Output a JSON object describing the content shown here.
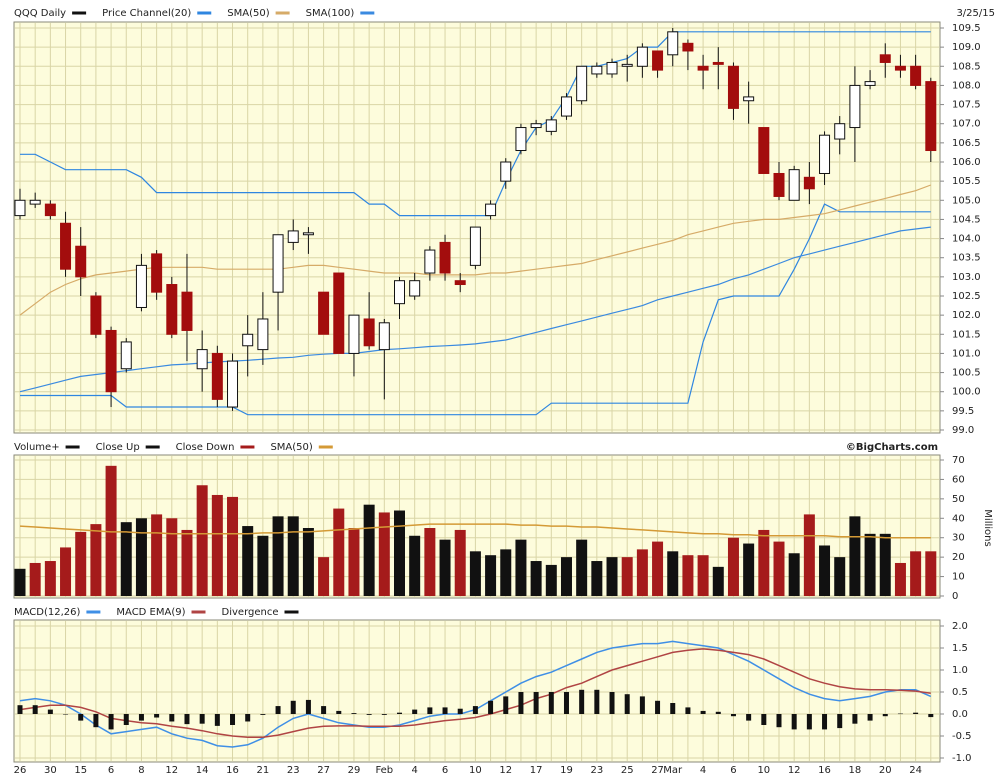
{
  "chart_data": [
    {
      "type": "candlestick",
      "title": "QQQ Daily",
      "date": "3/25/15",
      "color_up": "#ffffff",
      "color_down": "#a30d0d",
      "color_outline": "#111111",
      "open": [
        104.6,
        104.9,
        104.9,
        104.4,
        103.8,
        102.5,
        101.6,
        100.6,
        102.2,
        103.6,
        102.8,
        102.6,
        100.6,
        101.0,
        99.6,
        101.2,
        101.1,
        102.6,
        103.9,
        104.1,
        102.6,
        103.1,
        101.0,
        101.9,
        101.1,
        102.3,
        102.5,
        103.1,
        103.9,
        102.9,
        103.3,
        104.6,
        105.5,
        106.3,
        106.9,
        106.8,
        107.2,
        107.6,
        108.3,
        108.3,
        108.5,
        108.5,
        108.9,
        108.8,
        109.1,
        108.5,
        108.6,
        108.5,
        107.6,
        106.9,
        105.7,
        105.0,
        105.6,
        105.7,
        106.6,
        106.9,
        108.0,
        108.8,
        108.5,
        108.5,
        108.1
      ],
      "high": [
        105.3,
        105.2,
        105.0,
        104.7,
        104.3,
        102.6,
        101.7,
        101.4,
        103.6,
        103.7,
        103.0,
        103.6,
        101.6,
        101.2,
        101.0,
        102.0,
        102.6,
        104.1,
        104.5,
        104.3,
        102.6,
        103.1,
        102.0,
        102.6,
        101.9,
        103.0,
        103.1,
        103.8,
        104.1,
        103.1,
        104.3,
        105.0,
        106.1,
        107.0,
        107.1,
        107.2,
        107.8,
        108.5,
        108.6,
        108.7,
        108.8,
        109.1,
        108.9,
        109.5,
        109.2,
        108.8,
        109.0,
        108.6,
        108.1,
        106.9,
        106.0,
        105.9,
        106.0,
        106.8,
        107.2,
        108.5,
        108.4,
        109.1,
        108.8,
        108.8,
        108.2
      ],
      "low": [
        104.5,
        104.8,
        104.5,
        103.0,
        102.5,
        101.4,
        99.6,
        100.5,
        102.1,
        102.4,
        101.4,
        100.8,
        100.0,
        99.6,
        99.5,
        100.4,
        100.7,
        101.6,
        103.7,
        103.6,
        101.5,
        101.0,
        100.4,
        101.1,
        99.8,
        101.9,
        102.4,
        102.9,
        102.9,
        102.6,
        103.2,
        104.5,
        105.3,
        106.2,
        106.7,
        106.7,
        107.1,
        107.5,
        108.2,
        108.2,
        108.1,
        108.2,
        108.2,
        108.5,
        108.4,
        107.9,
        107.9,
        107.1,
        107.0,
        105.7,
        105.0,
        105.0,
        104.9,
        105.4,
        106.2,
        106.0,
        107.9,
        108.2,
        108.2,
        107.9,
        106.0
      ],
      "close": [
        105.0,
        105.0,
        104.6,
        103.2,
        103.0,
        101.5,
        100.0,
        101.3,
        103.3,
        102.6,
        101.5,
        101.6,
        101.1,
        99.8,
        100.8,
        101.5,
        101.9,
        104.1,
        104.2,
        104.15,
        101.5,
        101.0,
        102.0,
        101.2,
        101.8,
        102.9,
        102.9,
        103.7,
        103.1,
        102.8,
        104.3,
        104.9,
        106.0,
        106.9,
        107.0,
        107.1,
        107.7,
        108.5,
        108.5,
        108.6,
        108.55,
        109.0,
        108.4,
        109.4,
        108.9,
        108.4,
        108.55,
        107.4,
        107.7,
        105.7,
        105.1,
        105.8,
        105.3,
        106.7,
        107.0,
        108.0,
        108.1,
        108.6,
        108.4,
        108.0,
        106.3
      ],
      "channel": {
        "name": "Price Channel(20)",
        "color": "#2f86e0",
        "upper": [
          106.2,
          106.2,
          106.0,
          105.8,
          105.8,
          105.8,
          105.8,
          105.8,
          105.6,
          105.2,
          105.2,
          105.2,
          105.2,
          105.2,
          105.2,
          105.2,
          105.2,
          105.2,
          105.2,
          105.2,
          105.2,
          105.2,
          105.2,
          104.9,
          104.9,
          104.6,
          104.6,
          104.6,
          104.6,
          104.6,
          104.6,
          104.6,
          105.5,
          106.3,
          106.9,
          107.1,
          107.7,
          108.5,
          108.5,
          108.6,
          108.7,
          109.0,
          109.0,
          109.4,
          109.4,
          109.4,
          109.4,
          109.4,
          109.4,
          109.4,
          109.4,
          109.4,
          109.4,
          109.4,
          109.4,
          109.4,
          109.4,
          109.4,
          109.4,
          109.4,
          109.4
        ],
        "lower": [
          99.9,
          99.9,
          99.9,
          99.9,
          99.9,
          99.9,
          99.9,
          99.6,
          99.6,
          99.6,
          99.6,
          99.6,
          99.6,
          99.6,
          99.6,
          99.4,
          99.4,
          99.4,
          99.4,
          99.4,
          99.4,
          99.4,
          99.4,
          99.4,
          99.4,
          99.4,
          99.4,
          99.4,
          99.4,
          99.4,
          99.4,
          99.4,
          99.4,
          99.4,
          99.4,
          99.7,
          99.7,
          99.7,
          99.7,
          99.7,
          99.7,
          99.7,
          99.7,
          99.7,
          99.7,
          101.3,
          102.4,
          102.5,
          102.5,
          102.5,
          102.5,
          103.2,
          104.0,
          104.9,
          104.7,
          104.7,
          104.7,
          104.7,
          104.7,
          104.7,
          104.7
        ]
      },
      "series": [
        {
          "name": "SMA(50)",
          "color": "#d6ab68",
          "values": [
            102.0,
            102.3,
            102.6,
            102.8,
            102.95,
            103.05,
            103.1,
            103.15,
            103.2,
            103.25,
            103.25,
            103.25,
            103.25,
            103.2,
            103.2,
            103.2,
            103.2,
            103.2,
            103.25,
            103.3,
            103.3,
            103.25,
            103.2,
            103.15,
            103.1,
            103.1,
            103.1,
            103.05,
            103.05,
            103.05,
            103.05,
            103.1,
            103.1,
            103.15,
            103.2,
            103.25,
            103.3,
            103.35,
            103.45,
            103.55,
            103.65,
            103.75,
            103.85,
            103.95,
            104.1,
            104.2,
            104.3,
            104.4,
            104.45,
            104.5,
            104.5,
            104.55,
            104.6,
            104.65,
            104.75,
            104.85,
            104.95,
            105.05,
            105.15,
            105.25,
            105.4
          ]
        },
        {
          "name": "SMA(100)",
          "color": "#3a8ae0",
          "values": [
            100.0,
            100.1,
            100.2,
            100.3,
            100.4,
            100.45,
            100.5,
            100.55,
            100.6,
            100.65,
            100.7,
            100.72,
            100.75,
            100.78,
            100.8,
            100.82,
            100.85,
            100.88,
            100.9,
            100.95,
            100.98,
            101.0,
            101.0,
            101.05,
            101.1,
            101.12,
            101.15,
            101.18,
            101.2,
            101.22,
            101.25,
            101.3,
            101.35,
            101.45,
            101.55,
            101.65,
            101.75,
            101.85,
            101.95,
            102.05,
            102.15,
            102.25,
            102.4,
            102.5,
            102.6,
            102.7,
            102.8,
            102.95,
            103.05,
            103.2,
            103.35,
            103.5,
            103.6,
            103.7,
            103.8,
            103.9,
            104.0,
            104.1,
            104.2,
            104.25,
            104.3
          ]
        }
      ],
      "ylim": [
        99.0,
        109.5
      ],
      "yticks": [
        {
          "value": 99,
          "label": "99.0"
        },
        99.5,
        {
          "value": 100,
          "label": "100.0"
        },
        100.5,
        {
          "value": 101,
          "label": "101.0"
        },
        101.5,
        {
          "value": 102,
          "label": "102.0"
        },
        102.5,
        {
          "value": 103,
          "label": "103.0"
        },
        103.5,
        {
          "value": 104,
          "label": "104.0"
        },
        104.5,
        {
          "value": 105,
          "label": "105.0"
        },
        105.5,
        {
          "value": 106,
          "label": "106.0"
        },
        106.5,
        {
          "value": 107,
          "label": "107.0"
        },
        107.5,
        {
          "value": 108,
          "label": "108.0"
        },
        108.5,
        {
          "value": 109,
          "label": "109.0"
        },
        109.5
      ],
      "grid": true
    },
    {
      "type": "bar",
      "title": "Volume+",
      "credit": "©BigCharts.com",
      "ylabel": "Millions",
      "series": [
        {
          "name": "Close Up",
          "color": "#111111",
          "values": [
            14,
            null,
            null,
            null,
            null,
            null,
            null,
            38,
            40,
            null,
            null,
            null,
            null,
            null,
            null,
            36,
            31,
            41,
            41,
            35,
            null,
            null,
            null,
            47,
            null,
            44,
            31,
            null,
            29,
            null,
            23,
            21,
            24,
            29,
            18,
            16,
            20,
            29,
            18,
            20,
            null,
            null,
            null,
            23,
            null,
            null,
            15,
            null,
            27,
            null,
            null,
            22,
            null,
            26,
            20,
            41,
            32,
            32,
            null,
            null,
            null
          ]
        },
        {
          "name": "Close Down",
          "color": "#a51b1b",
          "values": [
            null,
            17,
            18,
            25,
            33,
            37,
            67,
            null,
            null,
            42,
            40,
            34,
            57,
            52,
            51,
            null,
            null,
            null,
            null,
            null,
            20,
            45,
            35,
            null,
            43,
            null,
            null,
            35,
            null,
            34,
            null,
            null,
            null,
            null,
            null,
            null,
            null,
            null,
            null,
            null,
            20,
            24,
            28,
            null,
            21,
            21,
            null,
            30,
            null,
            34,
            28,
            null,
            42,
            null,
            null,
            null,
            null,
            null,
            17,
            23,
            23
          ]
        },
        {
          "name": "SMA(50)",
          "color": "#d49a36",
          "style": "line",
          "values": [
            36,
            35.5,
            35,
            34.5,
            34,
            33.5,
            33,
            33,
            32.5,
            32.5,
            32,
            32,
            32,
            32,
            32,
            32,
            32.5,
            32.5,
            33,
            33,
            33.5,
            34,
            34.5,
            35,
            35.5,
            36,
            36.5,
            37,
            37,
            37,
            37,
            37,
            37,
            36.5,
            36.5,
            36,
            36,
            35.5,
            35.5,
            35,
            34.5,
            34,
            33.5,
            33,
            32.5,
            32,
            32,
            31.5,
            31.5,
            31,
            31,
            31,
            31,
            31,
            30.5,
            30.5,
            30.5,
            30,
            30,
            30,
            30
          ]
        }
      ],
      "ylim": [
        0,
        70
      ],
      "yticks": [
        0,
        10,
        20,
        30,
        40,
        50,
        60,
        70
      ],
      "grid": true
    },
    {
      "type": "line",
      "categories": [
        "26",
        null,
        "30",
        null,
        "15",
        null,
        "6",
        null,
        "8",
        null,
        "12",
        null,
        "14",
        null,
        "16",
        null,
        "21",
        null,
        "23",
        null,
        "27",
        null,
        "29",
        null,
        "Feb",
        null,
        "4",
        null,
        "6",
        null,
        "10",
        null,
        "12",
        null,
        "17",
        null,
        "19",
        null,
        "23",
        null,
        "25",
        null,
        "27",
        "Mar",
        null,
        "4",
        null,
        "6",
        null,
        "10",
        null,
        "12",
        null,
        "16",
        null,
        "18",
        null,
        "20",
        null,
        "24",
        null
      ],
      "series": [
        {
          "name": "MACD(12,26)",
          "color": "#3f8fe6",
          "values": [
            0.3,
            0.35,
            0.3,
            0.2,
            0.0,
            -0.25,
            -0.45,
            -0.4,
            -0.35,
            -0.3,
            -0.45,
            -0.55,
            -0.6,
            -0.72,
            -0.75,
            -0.7,
            -0.55,
            -0.3,
            -0.1,
            0.0,
            -0.1,
            -0.2,
            -0.25,
            -0.3,
            -0.3,
            -0.25,
            -0.15,
            -0.05,
            0.0,
            0.0,
            0.1,
            0.3,
            0.5,
            0.7,
            0.85,
            0.95,
            1.1,
            1.25,
            1.4,
            1.5,
            1.55,
            1.6,
            1.6,
            1.65,
            1.6,
            1.55,
            1.5,
            1.35,
            1.2,
            1.0,
            0.8,
            0.6,
            0.45,
            0.35,
            0.3,
            0.35,
            0.4,
            0.5,
            0.55,
            0.55,
            0.4
          ]
        },
        {
          "name": "MACD EMA(9)",
          "color": "#b04444",
          "values": [
            0.1,
            0.15,
            0.2,
            0.2,
            0.15,
            0.05,
            -0.1,
            -0.15,
            -0.2,
            -0.22,
            -0.28,
            -0.32,
            -0.38,
            -0.45,
            -0.5,
            -0.53,
            -0.53,
            -0.48,
            -0.4,
            -0.32,
            -0.28,
            -0.27,
            -0.27,
            -0.28,
            -0.28,
            -0.28,
            -0.25,
            -0.2,
            -0.15,
            -0.12,
            -0.08,
            0.0,
            0.1,
            0.2,
            0.35,
            0.45,
            0.6,
            0.7,
            0.85,
            1.0,
            1.1,
            1.2,
            1.3,
            1.4,
            1.45,
            1.48,
            1.45,
            1.4,
            1.35,
            1.25,
            1.1,
            0.95,
            0.8,
            0.7,
            0.62,
            0.57,
            0.55,
            0.55,
            0.54,
            0.52,
            0.47
          ]
        },
        {
          "name": "Divergence",
          "color": "#111111",
          "style": "bar",
          "values": [
            0.2,
            0.2,
            0.1,
            0.0,
            -0.15,
            -0.3,
            -0.35,
            -0.25,
            -0.15,
            -0.08,
            -0.17,
            -0.23,
            -0.22,
            -0.27,
            -0.25,
            -0.17,
            -0.02,
            0.18,
            0.3,
            0.32,
            0.18,
            0.07,
            0.02,
            -0.02,
            -0.02,
            0.03,
            0.1,
            0.15,
            0.15,
            0.12,
            0.18,
            0.3,
            0.4,
            0.5,
            0.5,
            0.5,
            0.5,
            0.55,
            0.55,
            0.5,
            0.45,
            0.4,
            0.3,
            0.25,
            0.15,
            0.07,
            0.05,
            -0.05,
            -0.15,
            -0.25,
            -0.3,
            -0.35,
            -0.35,
            -0.35,
            -0.32,
            -0.22,
            -0.15,
            -0.05,
            0.01,
            0.03,
            -0.07
          ]
        }
      ],
      "ylim": [
        -1.0,
        2.0
      ],
      "yticks": [
        {
          "value": -1,
          "label": "-1.0"
        },
        -0.5,
        {
          "value": 0,
          "label": "0.0"
        },
        0.5,
        {
          "value": 1,
          "label": "1.0"
        },
        1.5,
        {
          "value": 2,
          "label": "2.0"
        }
      ],
      "grid": true
    }
  ]
}
